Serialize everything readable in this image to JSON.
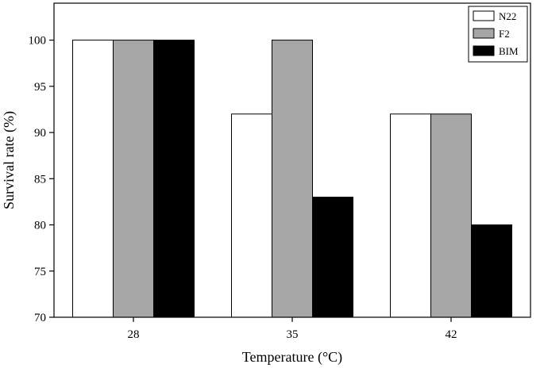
{
  "chart_data": {
    "type": "bar",
    "xlabel": "Temperature (°C)",
    "ylabel": "Survival rate (%)",
    "categories": [
      "28",
      "35",
      "42"
    ],
    "ylim": [
      70,
      104
    ],
    "yticks": [
      "70",
      "75",
      "80",
      "85",
      "90",
      "95",
      "100"
    ],
    "grid": false,
    "legend_position": "top-right",
    "series": [
      {
        "name": "N22",
        "color": "#ffffff",
        "values": [
          100,
          92,
          92
        ]
      },
      {
        "name": "F2",
        "color": "#a6a6a6",
        "values": [
          100,
          100,
          92
        ]
      },
      {
        "name": "BIM",
        "color": "#000000",
        "values": [
          100,
          83,
          80
        ]
      }
    ]
  }
}
